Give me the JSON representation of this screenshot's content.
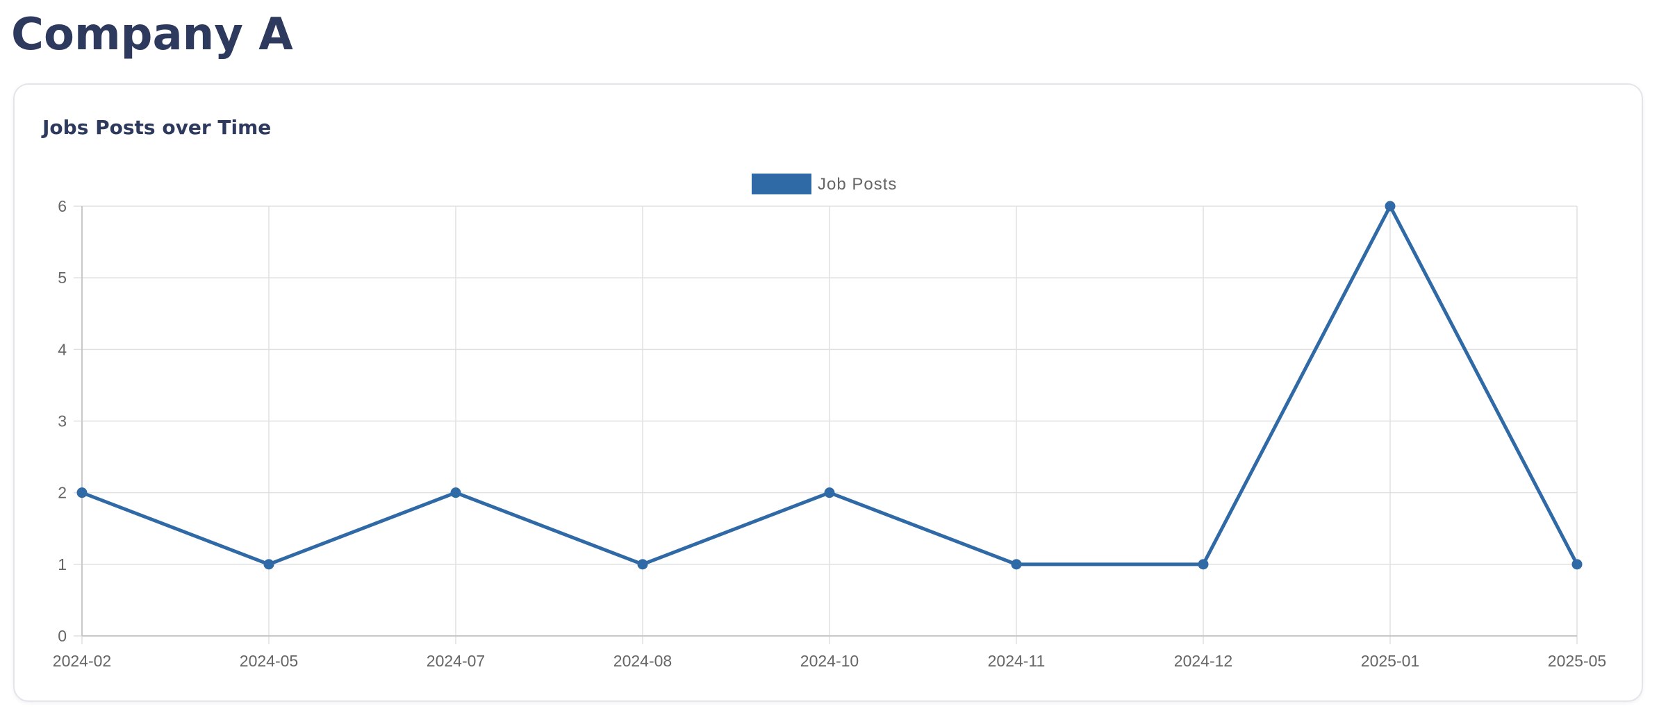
{
  "page": {
    "title": "Company A"
  },
  "card": {
    "title": "Jobs Posts over Time"
  },
  "chart_data": {
    "type": "line",
    "title": "Jobs Posts over Time",
    "categories": [
      "2024-02",
      "2024-05",
      "2024-07",
      "2024-08",
      "2024-10",
      "2024-11",
      "2024-12",
      "2025-01",
      "2025-05"
    ],
    "series": [
      {
        "name": "Job Posts",
        "values": [
          2,
          1,
          2,
          1,
          2,
          1,
          1,
          6,
          1
        ],
        "color": "#2f6aa6"
      }
    ],
    "xlabel": "",
    "ylabel": "",
    "ylim": [
      0,
      6
    ],
    "yticks": [
      0,
      1,
      2,
      3,
      4,
      5,
      6
    ],
    "grid": true,
    "legend": "top-center",
    "grid_color": "#e0e0e0",
    "tick_color": "#666666"
  }
}
